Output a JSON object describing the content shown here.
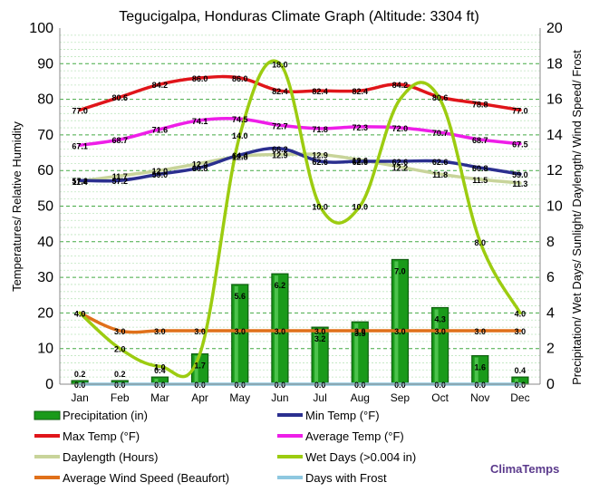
{
  "chart_data": {
    "type": "bar",
    "title": "Tegucigalpa, Honduras Climate Graph (Altitude: 3304 ft)",
    "ylabel_left": "Temperatures/ Relative Humidity",
    "ylabel_right": "Precipitation/ Wet Days/ Sunlight/ Daylength/ Wind Speed/ Frost",
    "ylim_left": [
      0,
      100
    ],
    "ylim_right": [
      0,
      20
    ],
    "yticks_left": [
      "0",
      "10",
      "20",
      "30",
      "40",
      "50",
      "60",
      "70",
      "80",
      "90",
      "100"
    ],
    "yticks_right": [
      "0",
      "2",
      "4",
      "6",
      "8",
      "10",
      "12",
      "14",
      "16",
      "18",
      "20"
    ],
    "categories": [
      "Jan",
      "Feb",
      "Mar",
      "Apr",
      "May",
      "Jun",
      "Jul",
      "Aug",
      "Sep",
      "Oct",
      "Nov",
      "Dec"
    ],
    "grid": true,
    "series": [
      {
        "name": "Precipitation (in)",
        "kind": "bar",
        "axis": "right",
        "color": "#1a9a1a",
        "values": [
          0.2,
          0.2,
          0.4,
          1.7,
          5.6,
          6.2,
          3.2,
          3.5,
          7.0,
          4.3,
          1.6,
          0.4
        ],
        "labels": [
          "0.2",
          "0.2",
          "0.4",
          "1.7",
          "5.6",
          "6.2",
          "3.2",
          "3.5",
          "7.0",
          "4.3",
          "1.6",
          "0.4"
        ]
      },
      {
        "name": "Min Temp (°F)",
        "kind": "line",
        "axis": "left",
        "color": "#2b2f8f",
        "values": [
          57.2,
          57.2,
          59.0,
          60.8,
          64.4,
          66.2,
          62.6,
          62.6,
          62.6,
          62.6,
          60.8,
          59.0
        ],
        "labels": [
          "57.2",
          "57.2",
          "59.0",
          "60.8",
          "64.4",
          "66.2",
          "62.6",
          "62.6",
          "62.6",
          "62.6",
          "60.8",
          "59.0"
        ]
      },
      {
        "name": "Max Temp (°F)",
        "kind": "line",
        "axis": "left",
        "color": "#e0151a",
        "values": [
          77.0,
          80.6,
          84.2,
          86.0,
          86.0,
          82.4,
          82.4,
          82.4,
          84.2,
          80.6,
          78.8,
          77.0
        ],
        "labels": [
          "77.0",
          "80.6",
          "84.2",
          "86.0",
          "86.0",
          "82.4",
          "82.4",
          "82.4",
          "84.2",
          "80.6",
          "78.8",
          "77.0"
        ]
      },
      {
        "name": "Average Temp (°F)",
        "kind": "line",
        "axis": "left",
        "color": "#ee1ee8",
        "values": [
          67.1,
          68.7,
          71.6,
          74.1,
          74.5,
          72.7,
          71.8,
          72.3,
          72.0,
          70.7,
          68.7,
          67.5
        ],
        "labels": [
          "67.1",
          "68.7",
          "71.6",
          "74.1",
          "74.5",
          "72.7",
          "71.8",
          "72.3",
          "72.0",
          "70.7",
          "68.7",
          "67.5"
        ]
      },
      {
        "name": "Daylength (Hours)",
        "kind": "line",
        "axis": "right",
        "color": "#c8d49a",
        "values": [
          11.4,
          11.7,
          12.0,
          12.4,
          12.8,
          12.9,
          12.9,
          12.6,
          12.2,
          11.8,
          11.5,
          11.3
        ],
        "labels": [
          "11.4",
          "11.7",
          "12.0",
          "12.4",
          "12.8",
          "12.9",
          "12.9",
          "12.6",
          "12.2",
          "11.8",
          "11.5",
          "11.3"
        ]
      },
      {
        "name": "Wet Days (>0.004 in)",
        "kind": "line",
        "axis": "right",
        "color": "#9ccc10",
        "values": [
          4.0,
          2.0,
          1.0,
          1.7,
          14.0,
          18.0,
          10.0,
          10.0,
          16.0,
          16.0,
          8.0,
          4.0
        ],
        "labels": [
          "4.0",
          "2.0",
          "1.0",
          "",
          "14.0",
          "18.0",
          "10.0",
          "10.0",
          "",
          "",
          "8.0",
          "4.0"
        ]
      },
      {
        "name": "Average Wind Speed (Beaufort)",
        "kind": "line",
        "axis": "right",
        "color": "#e0701a",
        "values": [
          4.0,
          3.0,
          3.0,
          3.0,
          3.0,
          3.0,
          3.0,
          3.0,
          3.0,
          3.0,
          3.0,
          3.0
        ],
        "labels": [
          "4.0",
          "3.0",
          "3.0",
          "3.0",
          "3.0",
          "3.0",
          "3.0",
          "3.0",
          "3.0",
          "3.0",
          "3.0",
          "3.0"
        ]
      },
      {
        "name": "Days with Frost",
        "kind": "line",
        "axis": "right",
        "color": "#8ec8e0",
        "values": [
          0.0,
          0.0,
          0.0,
          0.0,
          0.0,
          0.0,
          0.0,
          0.0,
          0.0,
          0.0,
          0.0,
          0.0
        ],
        "labels": [
          "0.0",
          "0.0",
          "0.0",
          "0.0",
          "0.0",
          "0.0",
          "0.0",
          "0.0",
          "0.0",
          "0.0",
          "0.0",
          "0.0"
        ]
      }
    ],
    "legend_position": "bottom"
  },
  "brand": "ClimaTemps"
}
